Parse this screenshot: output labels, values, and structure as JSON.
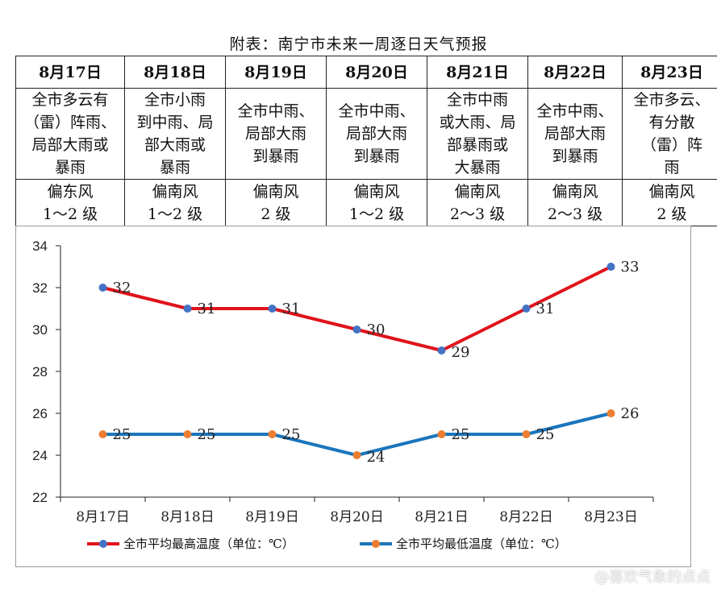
{
  "title": "附表：南宁市未来一周逐日天气预报",
  "days": [
    {
      "date": "8月17日",
      "weather": [
        "全市多云有",
        "（雷）阵雨、",
        "局部大雨或",
        "暴雨"
      ],
      "wind": [
        "偏东风",
        "1～2 级"
      ]
    },
    {
      "date": "8月18日",
      "weather": [
        "全市小雨",
        "到中雨、局",
        "部大雨或",
        "暴雨"
      ],
      "wind": [
        "偏南风",
        "1～2 级"
      ]
    },
    {
      "date": "8月19日",
      "weather": [
        "全市中雨、",
        "局部大雨",
        "到暴雨"
      ],
      "wind": [
        "偏南风",
        "2 级"
      ]
    },
    {
      "date": "8月20日",
      "weather": [
        "全市中雨、",
        "局部大雨",
        "到暴雨"
      ],
      "wind": [
        "偏南风",
        "1～2 级"
      ]
    },
    {
      "date": "8月21日",
      "weather": [
        "全市中雨",
        "或大雨、局",
        "部暴雨或",
        "大暴雨"
      ],
      "wind": [
        "偏南风",
        "2～3 级"
      ]
    },
    {
      "date": "8月22日",
      "weather": [
        "全市中雨、",
        "局部大雨",
        "到暴雨"
      ],
      "wind": [
        "偏南风",
        "2～3 级"
      ]
    },
    {
      "date": "8月23日",
      "weather": [
        "全市多云、",
        "有分散",
        "（雷）阵",
        "雨"
      ],
      "wind": [
        "偏南风",
        "2 级"
      ]
    }
  ],
  "chart_data": {
    "type": "line",
    "categories": [
      "8月17日",
      "8月18日",
      "8月19日",
      "8月20日",
      "8月21日",
      "8月22日",
      "8月23日"
    ],
    "series": [
      {
        "name": "全市平均最高温度（单位：℃）",
        "values": [
          32,
          31,
          31,
          30,
          29,
          31,
          33
        ],
        "line_color": "#e0131b",
        "marker_color": "#4472c4"
      },
      {
        "name": "全市平均最低温度（单位：℃）",
        "values": [
          25,
          25,
          25,
          24,
          25,
          25,
          26
        ],
        "line_color": "#1a75bc",
        "marker_color": "#ed7d31"
      }
    ],
    "ylim": [
      22,
      34
    ],
    "yticks": [
      22,
      24,
      26,
      28,
      30,
      32,
      34
    ],
    "grid": false,
    "legend_position": "bottom",
    "data_labels": true
  },
  "watermark": "@喜欢气象的点点"
}
